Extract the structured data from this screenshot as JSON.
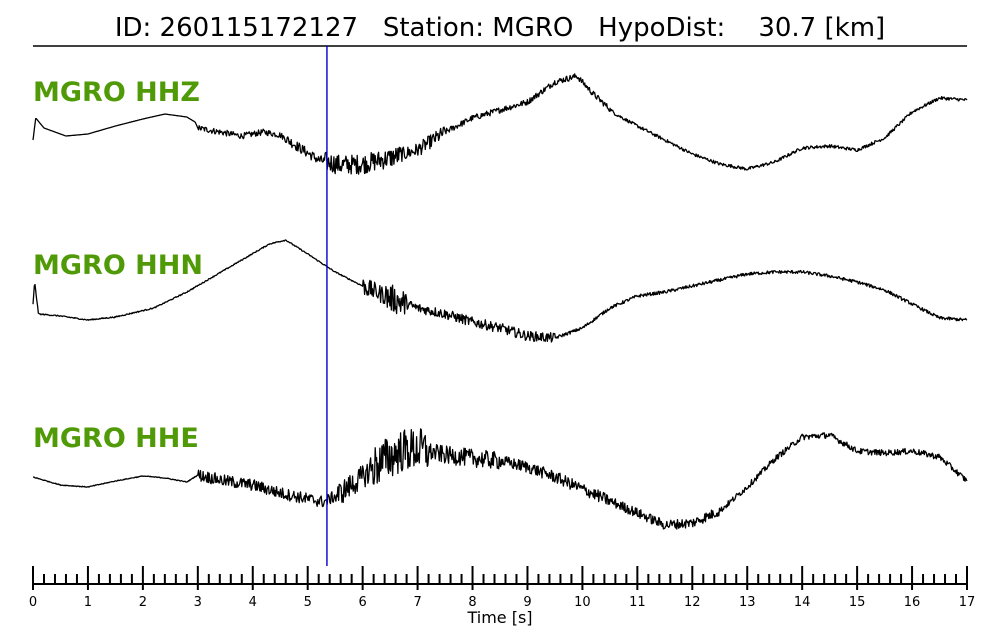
{
  "title": "ID: 260115172127   Station: MGRO   HypoDist:    30.7 [km]",
  "colors": {
    "trace": "#000000",
    "label": "#4f9a06",
    "marker": "#0000cc"
  },
  "chart_data": {
    "type": "line",
    "xlabel": "Time [s]",
    "xlim": [
      0,
      17
    ],
    "major_ticks": [
      0,
      1,
      2,
      3,
      4,
      5,
      6,
      7,
      8,
      9,
      10,
      11,
      12,
      13,
      14,
      15,
      16,
      17
    ],
    "minor_tick_step": 0.2,
    "tick_labels": [
      "0",
      "1",
      "2",
      "3",
      "4",
      "5",
      "6",
      "7",
      "8",
      "9",
      "10",
      "11",
      "12",
      "13",
      "14",
      "15",
      "16",
      "17"
    ],
    "marker_time": 5.35,
    "grid": false,
    "series": [
      {
        "name": "MGRO HHZ",
        "points": [
          [
            0,
            -0.6
          ],
          [
            0.05,
            0.5
          ],
          [
            0.2,
            0.0
          ],
          [
            0.6,
            -0.4
          ],
          [
            1.0,
            -0.3
          ],
          [
            1.5,
            0.1
          ],
          [
            2.0,
            0.45
          ],
          [
            2.4,
            0.7
          ],
          [
            2.8,
            0.55
          ],
          [
            2.95,
            0.3
          ],
          [
            3.0,
            0.0
          ],
          [
            3.4,
            -0.2
          ],
          [
            3.8,
            -0.4
          ],
          [
            4.2,
            -0.2
          ],
          [
            4.5,
            -0.35
          ],
          [
            4.8,
            -0.9
          ],
          [
            5.2,
            -1.6
          ],
          [
            5.6,
            -1.85
          ],
          [
            6.0,
            -1.8
          ],
          [
            6.5,
            -1.5
          ],
          [
            7.0,
            -1.1
          ],
          [
            7.5,
            -0.2
          ],
          [
            8.0,
            0.5
          ],
          [
            8.5,
            0.9
          ],
          [
            9.0,
            1.3
          ],
          [
            9.5,
            2.3
          ],
          [
            9.9,
            2.6
          ],
          [
            10.2,
            1.7
          ],
          [
            10.6,
            0.7
          ],
          [
            11.0,
            0.1
          ],
          [
            11.5,
            -0.6
          ],
          [
            12.0,
            -1.3
          ],
          [
            12.5,
            -1.8
          ],
          [
            13.0,
            -2.05
          ],
          [
            13.5,
            -1.7
          ],
          [
            14.0,
            -1.0
          ],
          [
            14.5,
            -0.9
          ],
          [
            15.0,
            -1.1
          ],
          [
            15.5,
            -0.5
          ],
          [
            16.0,
            0.8
          ],
          [
            16.5,
            1.5
          ],
          [
            17.0,
            1.4
          ]
        ],
        "noise": [
          [
            0,
            3,
            0.0
          ],
          [
            3,
            4.6,
            0.15
          ],
          [
            4.6,
            5.3,
            0.25
          ],
          [
            5.3,
            6.7,
            0.5
          ],
          [
            6.7,
            7.5,
            0.35
          ],
          [
            7.5,
            10.5,
            0.15
          ],
          [
            10.5,
            17,
            0.08
          ]
        ]
      },
      {
        "name": "MGRO HHN",
        "points": [
          [
            0,
            -0.2
          ],
          [
            0.03,
            0.9
          ],
          [
            0.1,
            -0.7
          ],
          [
            0.5,
            -0.8
          ],
          [
            1.0,
            -1.0
          ],
          [
            1.5,
            -0.85
          ],
          [
            2.2,
            -0.4
          ],
          [
            2.8,
            0.4
          ],
          [
            3.3,
            1.2
          ],
          [
            3.8,
            2.0
          ],
          [
            4.3,
            2.8
          ],
          [
            4.6,
            3.0
          ],
          [
            5.0,
            2.3
          ],
          [
            5.5,
            1.4
          ],
          [
            6.0,
            0.7
          ],
          [
            6.5,
            0.1
          ],
          [
            7.0,
            -0.4
          ],
          [
            7.5,
            -0.7
          ],
          [
            8.0,
            -1.1
          ],
          [
            8.5,
            -1.4
          ],
          [
            9.0,
            -1.8
          ],
          [
            9.5,
            -1.9
          ],
          [
            10.0,
            -1.4
          ],
          [
            10.5,
            -0.4
          ],
          [
            11.0,
            0.2
          ],
          [
            11.5,
            0.4
          ],
          [
            12.0,
            0.7
          ],
          [
            12.5,
            1.0
          ],
          [
            13.0,
            1.3
          ],
          [
            13.5,
            1.4
          ],
          [
            14.0,
            1.4
          ],
          [
            14.5,
            1.2
          ],
          [
            15.0,
            0.9
          ],
          [
            15.5,
            0.5
          ],
          [
            16.0,
            -0.2
          ],
          [
            16.5,
            -0.9
          ],
          [
            17.0,
            -1.0
          ]
        ],
        "noise": [
          [
            0,
            6,
            0.03
          ],
          [
            6,
            6.4,
            0.45
          ],
          [
            6.4,
            6.8,
            0.7
          ],
          [
            6.8,
            9.5,
            0.25
          ],
          [
            9.5,
            17,
            0.08
          ]
        ]
      },
      {
        "name": "MGRO HHE",
        "points": [
          [
            0,
            -0.1
          ],
          [
            0.5,
            -0.5
          ],
          [
            1.0,
            -0.6
          ],
          [
            1.5,
            -0.3
          ],
          [
            2.0,
            -0.05
          ],
          [
            2.4,
            -0.15
          ],
          [
            2.8,
            -0.35
          ],
          [
            3.0,
            0.0
          ],
          [
            3.5,
            -0.3
          ],
          [
            4.0,
            -0.5
          ],
          [
            4.5,
            -0.9
          ],
          [
            5.0,
            -1.2
          ],
          [
            5.3,
            -1.35
          ],
          [
            5.6,
            -0.9
          ],
          [
            6.0,
            -0.1
          ],
          [
            6.3,
            0.6
          ],
          [
            6.7,
            1.2
          ],
          [
            7.0,
            1.3
          ],
          [
            7.5,
            1.0
          ],
          [
            8.0,
            0.85
          ],
          [
            8.5,
            0.7
          ],
          [
            9.0,
            0.4
          ],
          [
            9.5,
            -0.1
          ],
          [
            10.0,
            -0.7
          ],
          [
            10.5,
            -1.3
          ],
          [
            11.0,
            -1.9
          ],
          [
            11.5,
            -2.5
          ],
          [
            12.0,
            -2.4
          ],
          [
            12.5,
            -1.8
          ],
          [
            13.0,
            -0.6
          ],
          [
            13.5,
            0.8
          ],
          [
            14.0,
            1.9
          ],
          [
            14.5,
            2.0
          ],
          [
            15.0,
            1.2
          ],
          [
            15.5,
            1.1
          ],
          [
            16.0,
            1.2
          ],
          [
            16.5,
            0.9
          ],
          [
            17.0,
            -0.3
          ]
        ],
        "noise": [
          [
            0,
            3,
            0.02
          ],
          [
            3,
            5.5,
            0.3
          ],
          [
            5.5,
            6.1,
            0.6
          ],
          [
            6.1,
            7.2,
            1.1
          ],
          [
            7.2,
            8.5,
            0.45
          ],
          [
            8.5,
            10.5,
            0.3
          ],
          [
            10.5,
            12.5,
            0.25
          ],
          [
            12.5,
            17,
            0.15
          ]
        ]
      }
    ]
  }
}
